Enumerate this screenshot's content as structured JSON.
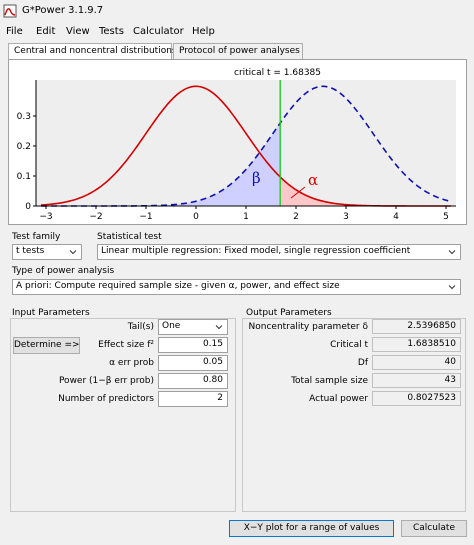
{
  "window": {
    "title": "G*Power 3.1.9.7"
  },
  "menu": [
    "File",
    "Edit",
    "View",
    "Tests",
    "Calculator",
    "Help"
  ],
  "tabs": [
    "Central and noncentral distributions",
    "Protocol of power analyses"
  ],
  "plot": {
    "critical_label": "critical t  =  1.68385",
    "beta_label": "β",
    "alpha_label": "α",
    "colors": {
      "central": "#d40000",
      "noncentral": "#1010b0",
      "critical": "#22cc22",
      "beta_fill": "#cfd0ff",
      "alpha_fill": "#ffc8c8"
    }
  },
  "chart_data": {
    "type": "line",
    "critical_t": 1.68385,
    "noncentrality": 2.539685,
    "df": 40,
    "xlim": [
      -3.2,
      5.2
    ],
    "ylim": [
      0,
      0.42
    ],
    "x_ticks": [
      "−3",
      "−2",
      "−1",
      "0",
      "1",
      "2",
      "3",
      "4",
      "5"
    ],
    "y_ticks": [
      "0",
      "0.1",
      "0.2",
      "0.3"
    ],
    "series": [
      {
        "values_desc": "central t distribution, df 40"
      },
      {
        "values_desc": "noncentral t distribution, δ 2.5396850"
      }
    ]
  },
  "test_family": {
    "label": "Test family",
    "value": "t tests"
  },
  "statistical_test": {
    "label": "Statistical test",
    "value": "Linear multiple regression: Fixed model, single regression coefficient"
  },
  "power_analysis": {
    "label": "Type of power analysis",
    "value": "A priori: Compute required sample size - given α, power, and effect size"
  },
  "input": {
    "title": "Input Parameters",
    "tails_label": "Tail(s)",
    "tails_value": "One",
    "determine_label": "Determine =>",
    "effect_label": "Effect size f²",
    "effect_value": "0.15",
    "alpha_label": "α err prob",
    "alpha_value": "0.05",
    "power_label": "Power (1−β err prob)",
    "power_value": "0.80",
    "predictors_label": "Number of predictors",
    "predictors_value": "2"
  },
  "output": {
    "title": "Output Parameters",
    "ncp_label": "Noncentrality parameter δ",
    "ncp_value": "2.5396850",
    "critt_label": "Critical t",
    "critt_value": "1.6838510",
    "df_label": "Df",
    "df_value": "40",
    "n_label": "Total sample size",
    "n_value": "43",
    "power_label": "Actual power",
    "power_value": "0.8027523"
  },
  "buttons": {
    "xy_plot": "X−Y plot for a range of values",
    "calculate": "Calculate"
  }
}
